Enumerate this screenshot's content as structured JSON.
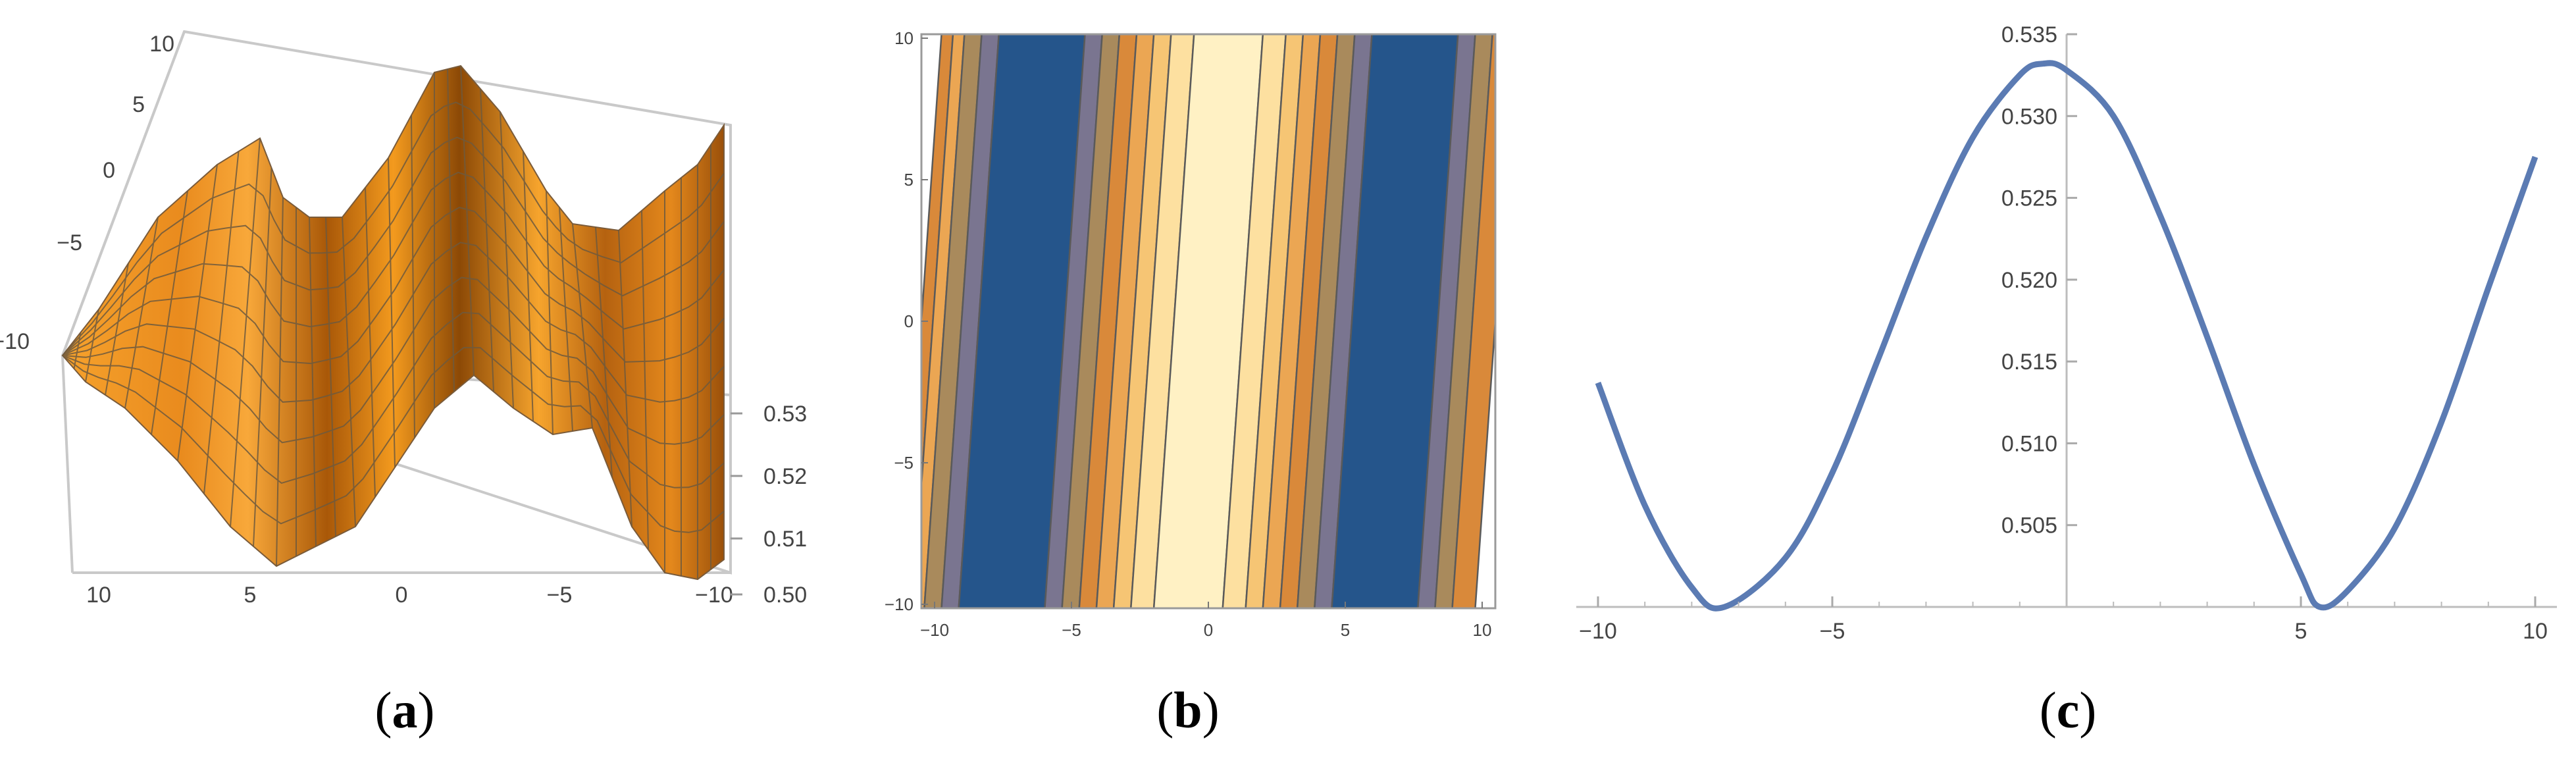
{
  "panels": [
    {
      "label_open": "(",
      "label_letter": "a",
      "label_close": ")",
      "chart_data": {
        "type": "surface",
        "x_ticks": [
          "10",
          "5",
          "0",
          "−5",
          "−10"
        ],
        "y_ticks": [
          "10",
          "5",
          "0",
          "−5",
          "−10"
        ],
        "z_ticks": [
          "0.53",
          "0.52",
          "0.51",
          "0.50"
        ],
        "xlim": [
          -10,
          10
        ],
        "ylim": [
          -10,
          10
        ],
        "zlim": [
          0.5,
          0.533
        ],
        "mesh": true,
        "surface_color": "#f39a1e"
      }
    },
    {
      "label_open": "(",
      "label_letter": "b",
      "label_close": ")",
      "chart_data": {
        "type": "heatmap",
        "subtype": "contour",
        "x_ticks": [
          "−10",
          "−5",
          "0",
          "5",
          "10"
        ],
        "y_ticks": [
          "10",
          "5",
          "0",
          "−5",
          "−10"
        ],
        "xlim": [
          -10,
          10
        ],
        "ylim": [
          -10,
          10
        ],
        "band_colors": [
          "#fff1c4",
          "#fde0a0",
          "#f6c574",
          "#eba653",
          "#d9893a",
          "#a98a5c",
          "#7a7590",
          "#25558b"
        ]
      }
    },
    {
      "label_open": "(",
      "label_letter": "c",
      "label_close": ")",
      "chart_data": {
        "type": "line",
        "xlim": [
          -10,
          10
        ],
        "ylim": [
          0.5,
          0.535
        ],
        "x_ticks": [
          "−10",
          "−5",
          "5",
          "10"
        ],
        "y_ticks": [
          "0.505",
          "0.510",
          "0.515",
          "0.520",
          "0.525",
          "0.530",
          "0.535"
        ],
        "series": [
          {
            "color": "#5b7bb3",
            "x": [
              -10,
              -9,
              -8,
              -7.3,
              -6,
              -5,
              -4,
              -3,
              -2,
              -1,
              -0.5,
              0,
              1,
              2,
              3,
              4,
              5,
              5.4,
              6,
              7,
              8,
              9,
              10
            ],
            "y": [
              0.5137,
              0.5062,
              0.5012,
              0.5,
              0.503,
              0.5082,
              0.5153,
              0.5226,
              0.5287,
              0.5325,
              0.5332,
              0.5328,
              0.53,
              0.5239,
              0.5165,
              0.5087,
              0.502,
              0.5,
              0.501,
              0.5048,
              0.5113,
              0.5195,
              0.5275
            ]
          }
        ]
      }
    }
  ]
}
